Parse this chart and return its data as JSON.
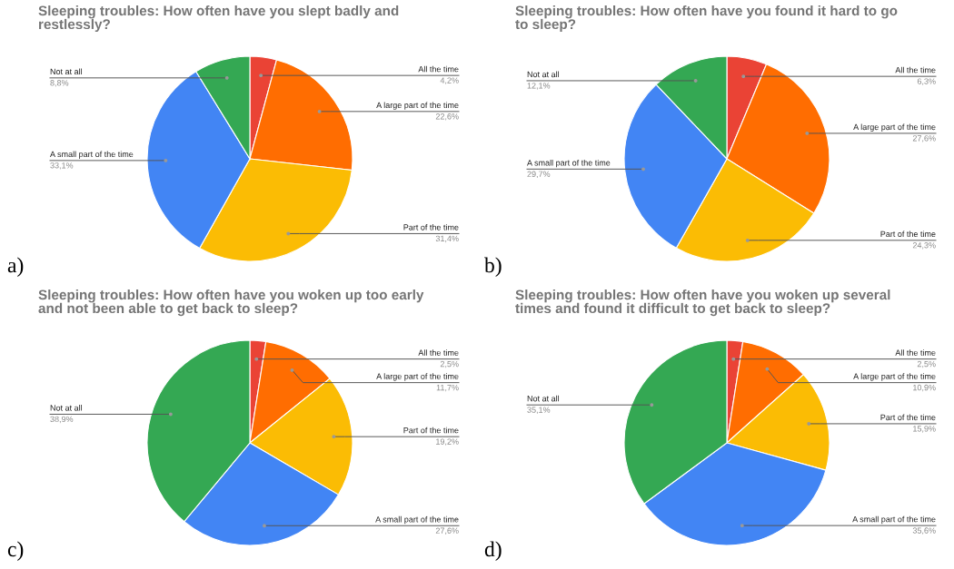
{
  "chart_data": [
    {
      "type": "pie",
      "title": "Sleeping troubles: How often have you slept badly and\nrestlessly?",
      "categories": [
        "All the time",
        "A large part of the time",
        "Part of the time",
        "A small part of the time",
        "Not at all"
      ],
      "values": [
        4.2,
        22.6,
        31.4,
        33.1,
        8.8
      ],
      "value_labels": [
        "4,2%",
        "22,6%",
        "31,4%",
        "33,1%",
        "8,8%"
      ],
      "colors": [
        "#ea4335",
        "#ff6d01",
        "#fbbc04",
        "#4285f4",
        "#34a853"
      ],
      "annotations": [
        "a)"
      ]
    },
    {
      "type": "pie",
      "title": "Sleeping troubles: How often have you found it hard to go\nto sleep?",
      "categories": [
        "All the time",
        "A large part of the time",
        "Part of the time",
        "A small part of the time",
        "Not at all"
      ],
      "values": [
        6.3,
        27.6,
        24.3,
        29.7,
        12.1
      ],
      "value_labels": [
        "6,3%",
        "27,6%",
        "24,3%",
        "29,7%",
        "12,1%"
      ],
      "colors": [
        "#ea4335",
        "#ff6d01",
        "#fbbc04",
        "#4285f4",
        "#34a853"
      ],
      "annotations": [
        "b)"
      ]
    },
    {
      "type": "pie",
      "title": "Sleeping troubles: How often have you woken up too early\nand not been able to get back to sleep?",
      "categories": [
        "All the time",
        "A large part of the time",
        "Part of the time",
        "A small part of the time",
        "Not at all"
      ],
      "values": [
        2.5,
        11.7,
        19.2,
        27.6,
        38.9
      ],
      "value_labels": [
        "2,5%",
        "11,7%",
        "19,2%",
        "27,6%",
        "38,9%"
      ],
      "colors": [
        "#ea4335",
        "#ff6d01",
        "#fbbc04",
        "#4285f4",
        "#34a853"
      ],
      "annotations": [
        "c)"
      ]
    },
    {
      "type": "pie",
      "title": "Sleeping troubles: How often have you woken up several\ntimes and found it difficult to get back to sleep?",
      "categories": [
        "All the time",
        "A large part of the time",
        "Part of the time",
        "A small part of the time",
        "Not at all"
      ],
      "values": [
        2.5,
        10.9,
        15.9,
        35.6,
        35.1
      ],
      "value_labels": [
        "2,5%",
        "10,9%",
        "15,9%",
        "35,6%",
        "35,1%"
      ],
      "colors": [
        "#ea4335",
        "#ff6d01",
        "#fbbc04",
        "#4285f4",
        "#34a853"
      ],
      "annotations": [
        "d)"
      ]
    }
  ]
}
